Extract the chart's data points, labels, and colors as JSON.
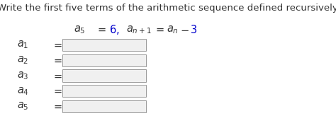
{
  "title": "Write the first five terms of the arithmetic sequence defined recursively.",
  "bg_color": "#ffffff",
  "text_color": "#333333",
  "blue_color": "#0000cc",
  "box_facecolor": "#f0f0f0",
  "box_edgecolor": "#999999",
  "title_fontsize": 9.5,
  "formula_fontsize": 10.5,
  "label_fontsize": 10.5
}
